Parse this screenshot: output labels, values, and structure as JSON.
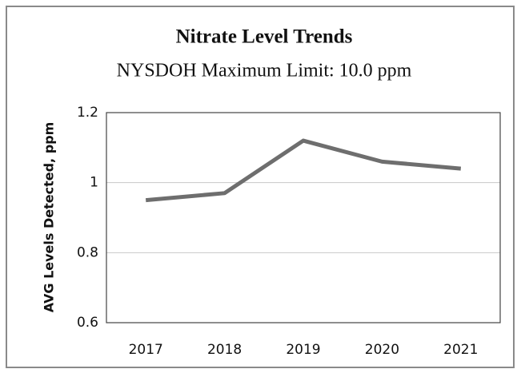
{
  "chart_data": {
    "type": "line",
    "title": "Nitrate Level Trends",
    "subtitle": "NYSDOH Maximum Limit: 10.0 ppm",
    "y_label": "AVG Levels Detected, ppm",
    "categories": [
      "2017",
      "2018",
      "2019",
      "2020",
      "2021"
    ],
    "values": [
      0.95,
      0.97,
      1.12,
      1.06,
      1.04
    ],
    "color": "#6e6e6e",
    "ylim": [
      0.6,
      1.2
    ],
    "yticks": [
      0.6,
      0.8,
      1,
      1.2
    ],
    "grid": true
  }
}
